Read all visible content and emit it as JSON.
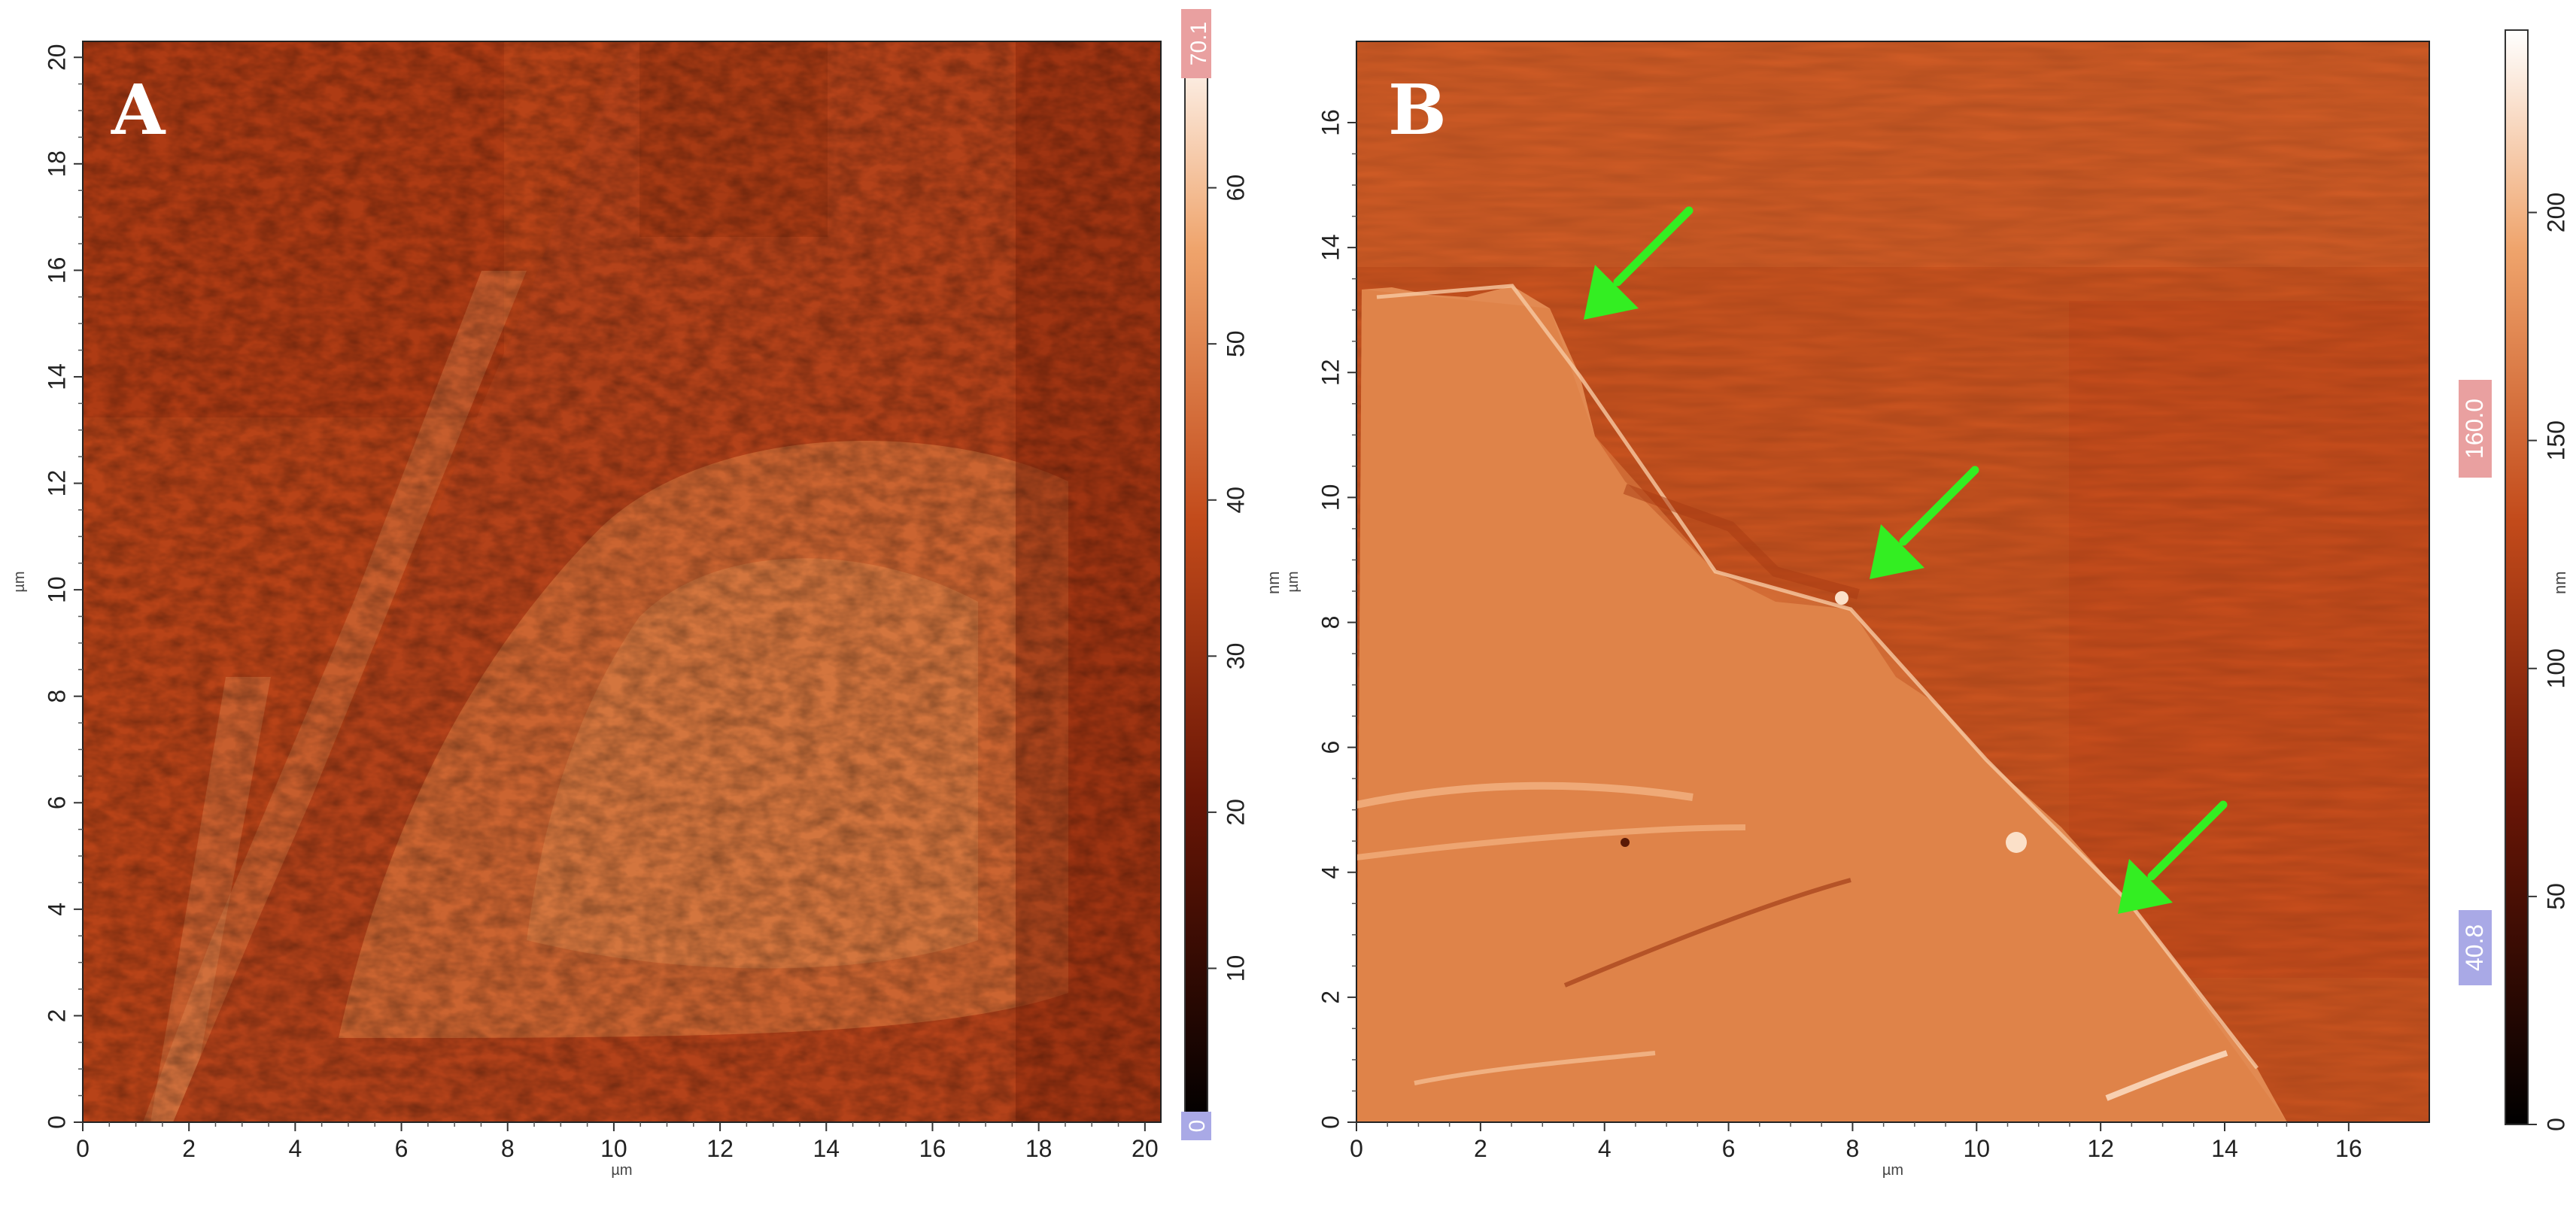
{
  "panels": [
    {
      "label": "A",
      "x_ticks": [
        "0",
        "2",
        "4",
        "6",
        "8",
        "10",
        "12",
        "14",
        "16",
        "18",
        "20"
      ],
      "y_ticks": [
        "0",
        "2",
        "4",
        "6",
        "8",
        "10",
        "12",
        "14",
        "16",
        "18",
        "20"
      ],
      "x_unit": "µm",
      "y_unit": "µm",
      "scale_unit": "nm",
      "scale_ticks": [
        "10",
        "20",
        "30",
        "40",
        "50",
        "60"
      ],
      "scale_max_marker": "70.1",
      "scale_min_marker": "0",
      "scale_range_nm": [
        0,
        70.1
      ]
    },
    {
      "label": "B",
      "x_ticks": [
        "0",
        "2",
        "4",
        "6",
        "8",
        "10",
        "12",
        "14",
        "16"
      ],
      "y_ticks": [
        "0",
        "2",
        "4",
        "6",
        "8",
        "10",
        "12",
        "14",
        "16"
      ],
      "x_unit": "µm",
      "y_unit": "µm",
      "scale_unit": "nm",
      "scale_ticks": [
        "0",
        "50",
        "100",
        "150",
        "200"
      ],
      "scale_upper_marker": "160.0",
      "scale_lower_marker": "40.8",
      "arrows_color": "#33ee22"
    }
  ],
  "colors": {
    "afm_dark": "#a8300c",
    "afm_mid": "#c44d1c",
    "afm_light": "#e8915a",
    "marker_red": "#e9a0a0",
    "marker_blue": "#a9a9e6",
    "arrow_green": "#33ee22"
  }
}
